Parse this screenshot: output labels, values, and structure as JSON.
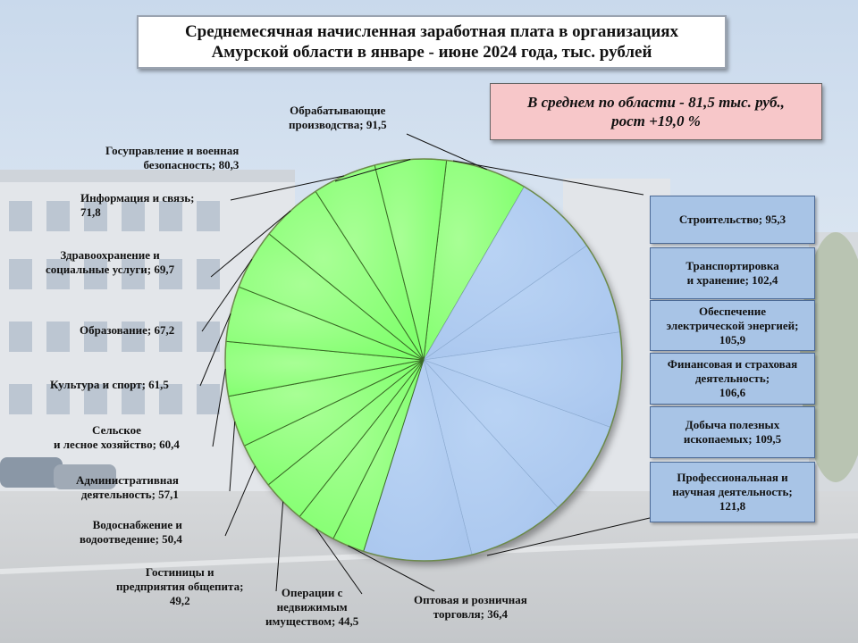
{
  "title": {
    "line1": "Среднемесячная  начисленная  заработная  плата  в  организациях",
    "line2": "Амурской  области в  январе - июне  2024 года,  тыс. рублей"
  },
  "average": {
    "line1": "В среднем по области - 81,5  тыс. руб.,",
    "line2": "рост +19,0 %"
  },
  "colors": {
    "green": "#7dff6a",
    "blue": "#a9c6ee",
    "edge": "#3a6b26",
    "box": "#a8c4e6"
  },
  "chart_data": {
    "type": "pie",
    "title": "Среднемесячная начисленная заработная плата в организациях Амурской области в январе - июне 2024 года, тыс. рублей",
    "unit": "тыс. рублей",
    "slices": [
      {
        "lines": [
          "Обрабатывающие",
          "производства; 91,5"
        ],
        "value": 91.5,
        "group": "green"
      },
      {
        "lines": [
          "Строительство; 95,3"
        ],
        "value": 95.3,
        "group": "blue"
      },
      {
        "lines": [
          "Транспортировка",
          "и хранение; 102,4"
        ],
        "value": 102.4,
        "group": "blue"
      },
      {
        "lines": [
          "Обеспечение",
          "электрической энергией;",
          "105,9"
        ],
        "value": 105.9,
        "group": "blue"
      },
      {
        "lines": [
          "Финансовая и страховая",
          "деятельность;",
          "106,6"
        ],
        "value": 106.6,
        "group": "blue"
      },
      {
        "lines": [
          "Добыча полезных",
          "ископаемых; 109,5"
        ],
        "value": 109.5,
        "group": "blue"
      },
      {
        "lines": [
          "Профессиональная и",
          "научная деятельность;",
          "121,8"
        ],
        "value": 121.8,
        "group": "blue"
      },
      {
        "lines": [
          "Оптовая и розничная",
          "торговля; 36,4"
        ],
        "value": 36.4,
        "group": "green"
      },
      {
        "lines": [
          "Операции с",
          "недвижимым",
          "имуществом; 44,5"
        ],
        "value": 44.5,
        "group": "green"
      },
      {
        "lines": [
          "Гостиницы и",
          "предприятия общепита;",
          "49,2"
        ],
        "value": 49.2,
        "group": "green"
      },
      {
        "lines": [
          "Водоснабжение и",
          "водоотведение; 50,4"
        ],
        "value": 50.4,
        "group": "green"
      },
      {
        "lines": [
          "Административная",
          "деятельность; 57,1"
        ],
        "value": 57.1,
        "group": "green"
      },
      {
        "lines": [
          "Сельское",
          "и лесное хозяйство; 60,4"
        ],
        "value": 60.4,
        "group": "green"
      },
      {
        "lines": [
          "Культура и спорт;  61,5"
        ],
        "value": 61.5,
        "group": "green"
      },
      {
        "lines": [
          "Образование; 67,2"
        ],
        "value": 67.2,
        "group": "green"
      },
      {
        "lines": [
          "Здравоохранение и",
          "социальные услуги; 69,7"
        ],
        "value": 69.7,
        "group": "green"
      },
      {
        "lines": [
          "Информация и связь;",
          "71,8"
        ],
        "value": 71.8,
        "group": "green"
      },
      {
        "lines": [
          "Госуправление и военная",
          "безопасность; 80,3"
        ],
        "value": 80.3,
        "group": "green"
      }
    ]
  }
}
